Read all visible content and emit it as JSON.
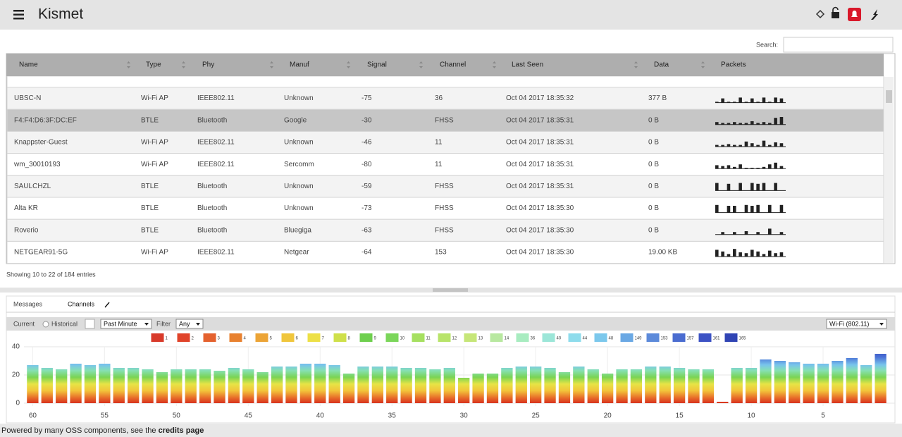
{
  "header": {
    "title": "Kismet"
  },
  "search_label": "Search:",
  "table": {
    "columns": [
      "Name",
      "Type",
      "Phy",
      "Manuf",
      "Signal",
      "Channel",
      "Last Seen",
      "Data",
      "Packets"
    ],
    "rows": [
      [
        "UBSC-N",
        "Wi-Fi AP",
        "IEEE802.11",
        "Unknown",
        "-75",
        "36",
        "Oct 04 2017 18:35:32",
        "377 B"
      ],
      [
        "F4:F4:D6:3F:DC:EF",
        "BTLE",
        "Bluetooth",
        "Google",
        "-30",
        "FHSS",
        "Oct 04 2017 18:35:31",
        "0 B"
      ],
      [
        "Knappster-Guest",
        "Wi-Fi AP",
        "IEEE802.11",
        "Unknown",
        "-46",
        "11",
        "Oct 04 2017 18:35:31",
        "0 B"
      ],
      [
        "wm_30010193",
        "Wi-Fi AP",
        "IEEE802.11",
        "Sercomm",
        "-80",
        "11",
        "Oct 04 2017 18:35:31",
        "0 B"
      ],
      [
        "SAULCHZL",
        "BTLE",
        "Bluetooth",
        "Unknown",
        "-59",
        "FHSS",
        "Oct 04 2017 18:35:31",
        "0 B"
      ],
      [
        "Alta KR",
        "BTLE",
        "Bluetooth",
        "Unknown",
        "-73",
        "FHSS",
        "Oct 04 2017 18:35:30",
        "0 B"
      ],
      [
        "Roverio",
        "BTLE",
        "Bluetooth",
        "Bluegiga",
        "-63",
        "FHSS",
        "Oct 04 2017 18:35:30",
        "0 B"
      ],
      [
        "NETGEAR91-5G",
        "Wi-Fi AP",
        "IEEE802.11",
        "Netgear",
        "-64",
        "153",
        "Oct 04 2017 18:35:30",
        "19.00 KB"
      ]
    ],
    "packets": [
      [
        1,
        5,
        1,
        1,
        6,
        1,
        5,
        1,
        6,
        1,
        6,
        5
      ],
      [
        3,
        2,
        2,
        3,
        2,
        2,
        4,
        2,
        3,
        2,
        8,
        9
      ],
      [
        2,
        2,
        3,
        2,
        2,
        6,
        4,
        2,
        7,
        2,
        5,
        4
      ],
      [
        4,
        3,
        4,
        2,
        5,
        1,
        1,
        1,
        2,
        5,
        7,
        3
      ],
      [
        9,
        0,
        8,
        0,
        9,
        0,
        9,
        8,
        9,
        0,
        9,
        0
      ],
      [
        9,
        0,
        8,
        8,
        0,
        9,
        8,
        9,
        0,
        9,
        0,
        9
      ],
      [
        0,
        3,
        0,
        3,
        0,
        4,
        0,
        3,
        0,
        7,
        0,
        3
      ],
      [
        8,
        6,
        3,
        9,
        5,
        4,
        8,
        6,
        3,
        7,
        4,
        5
      ]
    ]
  },
  "info": "Showing 10 to 22 of 184 entries",
  "tabs": [
    "Messages",
    "Channels"
  ],
  "controls": {
    "current": "Current",
    "historical": "Historical",
    "period": "Past Minute",
    "filter_label": "Filter",
    "filter": "Any",
    "phy": "Wi-Fi (802.11)"
  },
  "chart_data": {
    "type": "bar",
    "legend": [
      {
        "name": "1",
        "color": "#d83a2a"
      },
      {
        "name": "2",
        "color": "#e0432a"
      },
      {
        "name": "3",
        "color": "#e4612e"
      },
      {
        "name": "4",
        "color": "#e8812f"
      },
      {
        "name": "5",
        "color": "#eca436"
      },
      {
        "name": "6",
        "color": "#f0c63c"
      },
      {
        "name": "7",
        "color": "#ede046"
      },
      {
        "name": "8",
        "color": "#cfe04a"
      },
      {
        "name": "9",
        "color": "#6ecf4e"
      },
      {
        "name": "10",
        "color": "#7bd65a"
      },
      {
        "name": "11",
        "color": "#a6e060"
      },
      {
        "name": "12",
        "color": "#b8e46a"
      },
      {
        "name": "13",
        "color": "#c6e678"
      },
      {
        "name": "14",
        "color": "#b8e8a0"
      },
      {
        "name": "36",
        "color": "#a8ecc0"
      },
      {
        "name": "40",
        "color": "#9ce6d8"
      },
      {
        "name": "44",
        "color": "#8edcec"
      },
      {
        "name": "48",
        "color": "#7cc8ec"
      },
      {
        "name": "149",
        "color": "#6aa8e4"
      },
      {
        "name": "153",
        "color": "#5c8ada"
      },
      {
        "name": "157",
        "color": "#4a6cd0"
      },
      {
        "name": "161",
        "color": "#3c52c4"
      },
      {
        "name": "165",
        "color": "#3044b4"
      }
    ],
    "x": [
      60,
      59,
      58,
      57,
      56,
      55,
      54,
      53,
      52,
      51,
      50,
      49,
      48,
      47,
      46,
      45,
      44,
      43,
      42,
      41,
      40,
      39,
      38,
      37,
      36,
      35,
      34,
      33,
      32,
      31,
      30,
      29,
      28,
      27,
      26,
      25,
      24,
      23,
      22,
      21,
      20,
      19,
      18,
      17,
      16,
      15,
      14,
      13,
      12,
      11,
      10,
      9,
      8,
      7,
      6,
      5,
      4,
      3,
      2,
      1
    ],
    "values": [
      27,
      25,
      24,
      28,
      27,
      28,
      25,
      25,
      24,
      22,
      24,
      24,
      24,
      23,
      25,
      24,
      22,
      26,
      26,
      28,
      28,
      27,
      21,
      26,
      26,
      26,
      25,
      25,
      24,
      25,
      18,
      21,
      21,
      25,
      26,
      26,
      25,
      22,
      26,
      24,
      21,
      24,
      24,
      26,
      26,
      25,
      24,
      24,
      1,
      25,
      25,
      31,
      30,
      29,
      28,
      28,
      30,
      32,
      27,
      35
    ],
    "xlim": [
      61,
      0
    ],
    "ylim": [
      0,
      40
    ],
    "xticks": [
      60,
      55,
      50,
      45,
      40,
      35,
      30,
      25,
      20,
      15,
      10,
      5
    ],
    "yticks": [
      0,
      20,
      40
    ]
  },
  "footer": {
    "text": "Powered by many OSS components, see the",
    "link": "credits page"
  }
}
